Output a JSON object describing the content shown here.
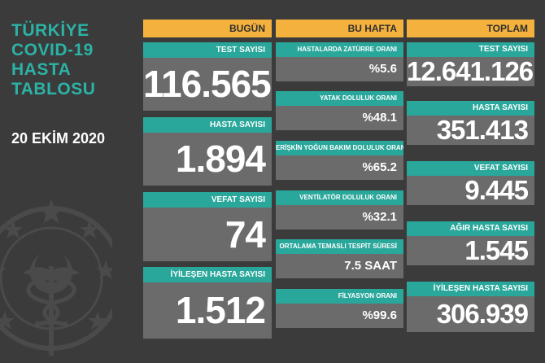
{
  "title_lines": [
    "TÜRKİYE",
    "COVID-19",
    "HASTA",
    "TABLOSU"
  ],
  "date": "20 EKİM 2020",
  "colors": {
    "teal": "#2aa79b",
    "orange": "#f5b13d",
    "gray": "#6b6b6b",
    "background": "#3b3b3b"
  },
  "emblem": "health-ministry-emblem",
  "today": {
    "header": "BUGÜN",
    "items": [
      {
        "label": "TEST SAYISI",
        "value": "116.565"
      },
      {
        "label": "HASTA SAYISI",
        "value": "1.894"
      },
      {
        "label": "VEFAT SAYISI",
        "value": "74"
      },
      {
        "label": "İYİLEŞEN HASTA SAYISI",
        "value": "1.512"
      }
    ]
  },
  "this_week": {
    "header": "BU HAFTA",
    "items": [
      {
        "label": "HASTALARDA ZATÜRRE ORANI",
        "value": "%5.6"
      },
      {
        "label": "YATAK DOLULUK ORANI",
        "value": "%48.1"
      },
      {
        "label": "ERİŞKİN YOĞUN BAKIM DOLULUK ORANI",
        "value": "%65.2"
      },
      {
        "label": "VENTİLATÖR DOLULUK ORANI",
        "value": "%32.1"
      },
      {
        "label": "ORTALAMA TEMASLI TESPİT SÜRESİ",
        "value": "7.5 SAAT"
      },
      {
        "label": "FİLYASYON ORANI",
        "value": "%99.6"
      }
    ]
  },
  "total": {
    "header": "TOPLAM",
    "items": [
      {
        "label": "TEST SAYISI",
        "value": "12.641.126"
      },
      {
        "label": "HASTA SAYISI",
        "value": "351.413"
      },
      {
        "label": "VEFAT SAYISI",
        "value": "9.445"
      },
      {
        "label": "AĞIR HASTA SAYISI",
        "value": "1.545"
      },
      {
        "label": "İYİLEŞEN HASTA SAYISI",
        "value": "306.939"
      }
    ]
  }
}
